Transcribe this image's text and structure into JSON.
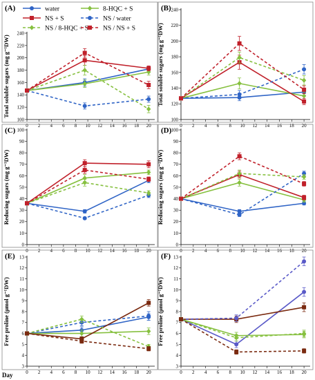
{
  "x_axis_label": "Day",
  "legend": [
    {
      "name": "water",
      "color": "#2f64c6",
      "dash": false,
      "marker": "circle"
    },
    {
      "name": "8-HQC + S",
      "color": "#86c03f",
      "dash": false,
      "marker": "diamond"
    },
    {
      "name": "NS + S",
      "color": "#c0202a",
      "dash": false,
      "marker": "square"
    },
    {
      "name": "NS / water",
      "color": "#2f64c6",
      "dash": true,
      "marker": "circle"
    },
    {
      "name": "NS / 8-HQC + S",
      "color": "#86c03f",
      "dash": true,
      "marker": "diamond"
    },
    {
      "name": "NS / NS + S",
      "color": "#c0202a",
      "dash": true,
      "marker": "square"
    }
  ],
  "chart_data": [
    {
      "panel": "(A)",
      "type": "line",
      "ylabel": "Total soluble sugars (mg g⁻¹DW)",
      "ylim": [
        100,
        240
      ],
      "yticks": [
        100,
        120,
        140,
        160,
        180,
        200,
        220,
        240
      ],
      "xlim": [
        0,
        21
      ],
      "xticks": [
        0,
        2,
        4,
        6,
        8,
        10,
        12,
        14,
        16,
        18,
        20
      ],
      "series": [
        {
          "name": "water",
          "color": "#2f64c6",
          "dash": false,
          "marker": "circle",
          "x": [
            0,
            9.5,
            20
          ],
          "y": [
            147,
            160,
            182
          ],
          "err": [
            2,
            6,
            4
          ]
        },
        {
          "name": "8-HQC + S",
          "color": "#86c03f",
          "dash": false,
          "marker": "diamond",
          "x": [
            0,
            9.5,
            20
          ],
          "y": [
            147,
            158,
            177
          ],
          "err": [
            2,
            6,
            5
          ]
        },
        {
          "name": "NS + S",
          "color": "#c0202a",
          "dash": false,
          "marker": "square",
          "x": [
            0,
            9.5,
            20
          ],
          "y": [
            147,
            196,
            183
          ],
          "err": [
            2,
            8,
            4
          ]
        },
        {
          "name": "NS / water",
          "color": "#2f64c6",
          "dash": true,
          "marker": "circle",
          "x": [
            0,
            9.5,
            20
          ],
          "y": [
            147,
            122,
            133
          ],
          "err": [
            2,
            5,
            5
          ]
        },
        {
          "name": "NS / 8-HQC + S",
          "color": "#86c03f",
          "dash": true,
          "marker": "diamond",
          "x": [
            0,
            9.5,
            20
          ],
          "y": [
            147,
            180,
            117
          ],
          "err": [
            2,
            8,
            6
          ]
        },
        {
          "name": "NS / NS + S",
          "color": "#c0202a",
          "dash": true,
          "marker": "square",
          "x": [
            0,
            9.5,
            20
          ],
          "y": [
            147,
            208,
            156
          ],
          "err": [
            2,
            7,
            6
          ]
        }
      ]
    },
    {
      "panel": "(B)",
      "type": "line",
      "ylabel": "Total soluble sugars (mg g⁻¹DW)",
      "ylim": [
        100,
        240
      ],
      "yticks": [
        100,
        120,
        140,
        160,
        180,
        200,
        220,
        240
      ],
      "xlim": [
        0,
        21
      ],
      "xticks": [
        0,
        2,
        4,
        6,
        8,
        10,
        12,
        14,
        16,
        18,
        20
      ],
      "series": [
        {
          "name": "water",
          "color": "#2f64c6",
          "dash": false,
          "marker": "circle",
          "x": [
            0,
            9.5,
            20
          ],
          "y": [
            127,
            128,
            135
          ],
          "err": [
            2,
            4,
            4
          ]
        },
        {
          "name": "8-HQC + S",
          "color": "#86c03f",
          "dash": false,
          "marker": "diamond",
          "x": [
            0,
            9.5,
            20
          ],
          "y": [
            127,
            146,
            130
          ],
          "err": [
            2,
            7,
            5
          ]
        },
        {
          "name": "NS + S",
          "color": "#c0202a",
          "dash": false,
          "marker": "square",
          "x": [
            0,
            9.5,
            20
          ],
          "y": [
            127,
            173,
            123
          ],
          "err": [
            2,
            9,
            4
          ]
        },
        {
          "name": "NS / water",
          "color": "#2f64c6",
          "dash": true,
          "marker": "circle",
          "x": [
            0,
            9.5,
            20
          ],
          "y": [
            127,
            132,
            164
          ],
          "err": [
            2,
            5,
            6
          ]
        },
        {
          "name": "NS / 8-HQC + S",
          "color": "#86c03f",
          "dash": true,
          "marker": "diamond",
          "x": [
            0,
            9.5,
            20
          ],
          "y": [
            127,
            179,
            150
          ],
          "err": [
            2,
            7,
            6
          ]
        },
        {
          "name": "NS / NS + S",
          "color": "#c0202a",
          "dash": true,
          "marker": "square",
          "x": [
            0,
            9.5,
            20
          ],
          "y": [
            127,
            197,
            138
          ],
          "err": [
            2,
            9,
            5
          ]
        }
      ]
    },
    {
      "panel": "(C)",
      "type": "line",
      "ylabel": "Reducing sugars (mg g⁻¹DW)",
      "ylim": [
        0,
        100
      ],
      "yticks": [
        0,
        10,
        20,
        30,
        40,
        50,
        60,
        70,
        80,
        90,
        100
      ],
      "xlim": [
        0,
        21
      ],
      "xticks": [
        0,
        2,
        4,
        6,
        8,
        10,
        12,
        14,
        16,
        18,
        20
      ],
      "series": [
        {
          "name": "water",
          "color": "#2f64c6",
          "dash": false,
          "marker": "circle",
          "x": [
            0,
            9.5,
            20
          ],
          "y": [
            36,
            29,
            56
          ],
          "err": [
            1,
            1.5,
            2
          ]
        },
        {
          "name": "8-HQC + S",
          "color": "#86c03f",
          "dash": false,
          "marker": "diamond",
          "x": [
            0,
            9.5,
            20
          ],
          "y": [
            36,
            58,
            63
          ],
          "err": [
            1,
            3,
            2
          ]
        },
        {
          "name": "NS + S",
          "color": "#c0202a",
          "dash": false,
          "marker": "square",
          "x": [
            0,
            9.5,
            20
          ],
          "y": [
            36,
            71,
            70
          ],
          "err": [
            1,
            3,
            3
          ]
        },
        {
          "name": "NS / water",
          "color": "#2f64c6",
          "dash": true,
          "marker": "circle",
          "x": [
            0,
            9.5,
            20
          ],
          "y": [
            36,
            23,
            43
          ],
          "err": [
            1,
            1,
            2
          ]
        },
        {
          "name": "NS / 8-HQC + S",
          "color": "#86c03f",
          "dash": true,
          "marker": "diamond",
          "x": [
            0,
            9.5,
            20
          ],
          "y": [
            36,
            54,
            45
          ],
          "err": [
            1,
            3,
            2
          ]
        },
        {
          "name": "NS / NS + S",
          "color": "#c0202a",
          "dash": true,
          "marker": "square",
          "x": [
            0,
            9.5,
            20
          ],
          "y": [
            36,
            65,
            57
          ],
          "err": [
            1,
            3,
            2
          ]
        }
      ]
    },
    {
      "panel": "(D)",
      "type": "line",
      "ylabel": "Reducing sugars (mg g⁻¹DW)",
      "ylim": [
        0,
        100
      ],
      "yticks": [
        0,
        10,
        20,
        30,
        40,
        50,
        60,
        70,
        80,
        90,
        100
      ],
      "xlim": [
        0,
        21
      ],
      "xticks": [
        0,
        2,
        4,
        6,
        8,
        10,
        12,
        14,
        16,
        18,
        20
      ],
      "series": [
        {
          "name": "water",
          "color": "#2f64c6",
          "dash": false,
          "marker": "circle",
          "x": [
            0,
            9.5,
            20
          ],
          "y": [
            40,
            29,
            36
          ],
          "err": [
            1,
            1.5,
            1.5
          ]
        },
        {
          "name": "8-HQC + S",
          "color": "#86c03f",
          "dash": false,
          "marker": "diamond",
          "x": [
            0,
            9.5,
            20
          ],
          "y": [
            40,
            54,
            39
          ],
          "err": [
            1,
            3,
            2
          ]
        },
        {
          "name": "NS + S",
          "color": "#c0202a",
          "dash": false,
          "marker": "square",
          "x": [
            0,
            9.5,
            20
          ],
          "y": [
            40,
            61,
            41
          ],
          "err": [
            1,
            3,
            2
          ]
        },
        {
          "name": "NS / water",
          "color": "#2f64c6",
          "dash": true,
          "marker": "circle",
          "x": [
            0,
            9.5,
            20
          ],
          "y": [
            40,
            26,
            62
          ],
          "err": [
            1,
            1.5,
            2
          ]
        },
        {
          "name": "NS / 8-HQC + S",
          "color": "#86c03f",
          "dash": true,
          "marker": "diamond",
          "x": [
            0,
            9.5,
            20
          ],
          "y": [
            40,
            62,
            59
          ],
          "err": [
            1,
            3,
            2
          ]
        },
        {
          "name": "NS / NS + S",
          "color": "#c0202a",
          "dash": true,
          "marker": "square",
          "x": [
            0,
            9.5,
            20
          ],
          "y": [
            40,
            77,
            53
          ],
          "err": [
            1,
            3,
            2
          ]
        }
      ]
    },
    {
      "panel": "(E)",
      "type": "line",
      "ylabel": "Free proline (μmol g⁻¹DW)",
      "ylim": [
        3,
        13
      ],
      "yticks": [
        3,
        4,
        5,
        6,
        7,
        8,
        9,
        10,
        11,
        12,
        13
      ],
      "xlim": [
        0,
        21
      ],
      "xticks": [
        0,
        2,
        4,
        6,
        8,
        10,
        12,
        14,
        16,
        18,
        20
      ],
      "series": [
        {
          "name": "water",
          "color": "#2f64c6",
          "dash": false,
          "marker": "circle",
          "x": [
            0,
            9,
            20
          ],
          "y": [
            6.0,
            6.3,
            7.5
          ],
          "err": [
            0.1,
            0.3,
            0.3
          ]
        },
        {
          "name": "8-HQC + S",
          "color": "#86c03f",
          "dash": false,
          "marker": "diamond",
          "x": [
            0,
            9,
            20
          ],
          "y": [
            6.0,
            6.0,
            6.2
          ],
          "err": [
            0.1,
            0.3,
            0.3
          ]
        },
        {
          "name": "NS + S",
          "color": "#7a2a10",
          "dash": false,
          "marker": "square",
          "x": [
            0,
            9,
            20
          ],
          "y": [
            6.0,
            5.5,
            8.8
          ],
          "err": [
            0.1,
            0.2,
            0.3
          ]
        },
        {
          "name": "NS / water",
          "color": "#2f64c6",
          "dash": true,
          "marker": "circle",
          "x": [
            0,
            9,
            20
          ],
          "y": [
            6.0,
            7.0,
            7.6
          ],
          "err": [
            0.1,
            0.3,
            0.4
          ]
        },
        {
          "name": "NS / 8-HQC + S",
          "color": "#86c03f",
          "dash": true,
          "marker": "diamond",
          "x": [
            0,
            9,
            20
          ],
          "y": [
            6.0,
            7.3,
            4.8
          ],
          "err": [
            0.1,
            0.3,
            0.2
          ]
        },
        {
          "name": "NS / NS + S",
          "color": "#7a2a10",
          "dash": true,
          "marker": "square",
          "x": [
            0,
            9,
            20
          ],
          "y": [
            6.0,
            5.3,
            4.6
          ],
          "err": [
            0.1,
            0.2,
            0.2
          ]
        }
      ]
    },
    {
      "panel": "(F)",
      "type": "line",
      "ylabel": "Free proline (μmol g⁻¹DW)",
      "ylim": [
        3,
        13
      ],
      "yticks": [
        3,
        4,
        5,
        6,
        7,
        8,
        9,
        10,
        11,
        12,
        13
      ],
      "xlim": [
        0,
        21
      ],
      "xticks": [
        0,
        2,
        4,
        6,
        8,
        10,
        12,
        14,
        16,
        18,
        20
      ],
      "series": [
        {
          "name": "water",
          "color": "#5a5ac8",
          "dash": false,
          "marker": "circle",
          "x": [
            0,
            9,
            20
          ],
          "y": [
            7.3,
            5.0,
            9.8
          ],
          "err": [
            0.1,
            0.3,
            0.4
          ]
        },
        {
          "name": "8-HQC + S",
          "color": "#86c03f",
          "dash": false,
          "marker": "diamond",
          "x": [
            0,
            9,
            20
          ],
          "y": [
            7.3,
            5.8,
            5.9
          ],
          "err": [
            0.1,
            0.3,
            0.3
          ]
        },
        {
          "name": "NS + S",
          "color": "#7a2a10",
          "dash": false,
          "marker": "square",
          "x": [
            0,
            9,
            20
          ],
          "y": [
            7.3,
            7.3,
            8.4
          ],
          "err": [
            0.1,
            0.3,
            0.4
          ]
        },
        {
          "name": "NS / water",
          "color": "#5a5ac8",
          "dash": true,
          "marker": "circle",
          "x": [
            0,
            9,
            20
          ],
          "y": [
            7.3,
            7.4,
            12.6
          ],
          "err": [
            0.1,
            0.3,
            0.4
          ]
        },
        {
          "name": "NS / 8-HQC + S",
          "color": "#86c03f",
          "dash": true,
          "marker": "diamond",
          "x": [
            0,
            9,
            20
          ],
          "y": [
            7.3,
            5.6,
            6.0
          ],
          "err": [
            0.1,
            0.3,
            0.3
          ]
        },
        {
          "name": "NS / NS + S",
          "color": "#7a2a10",
          "dash": true,
          "marker": "square",
          "x": [
            0,
            9,
            20
          ],
          "y": [
            7.3,
            4.3,
            4.4
          ],
          "err": [
            0.1,
            0.2,
            0.2
          ]
        }
      ]
    }
  ]
}
